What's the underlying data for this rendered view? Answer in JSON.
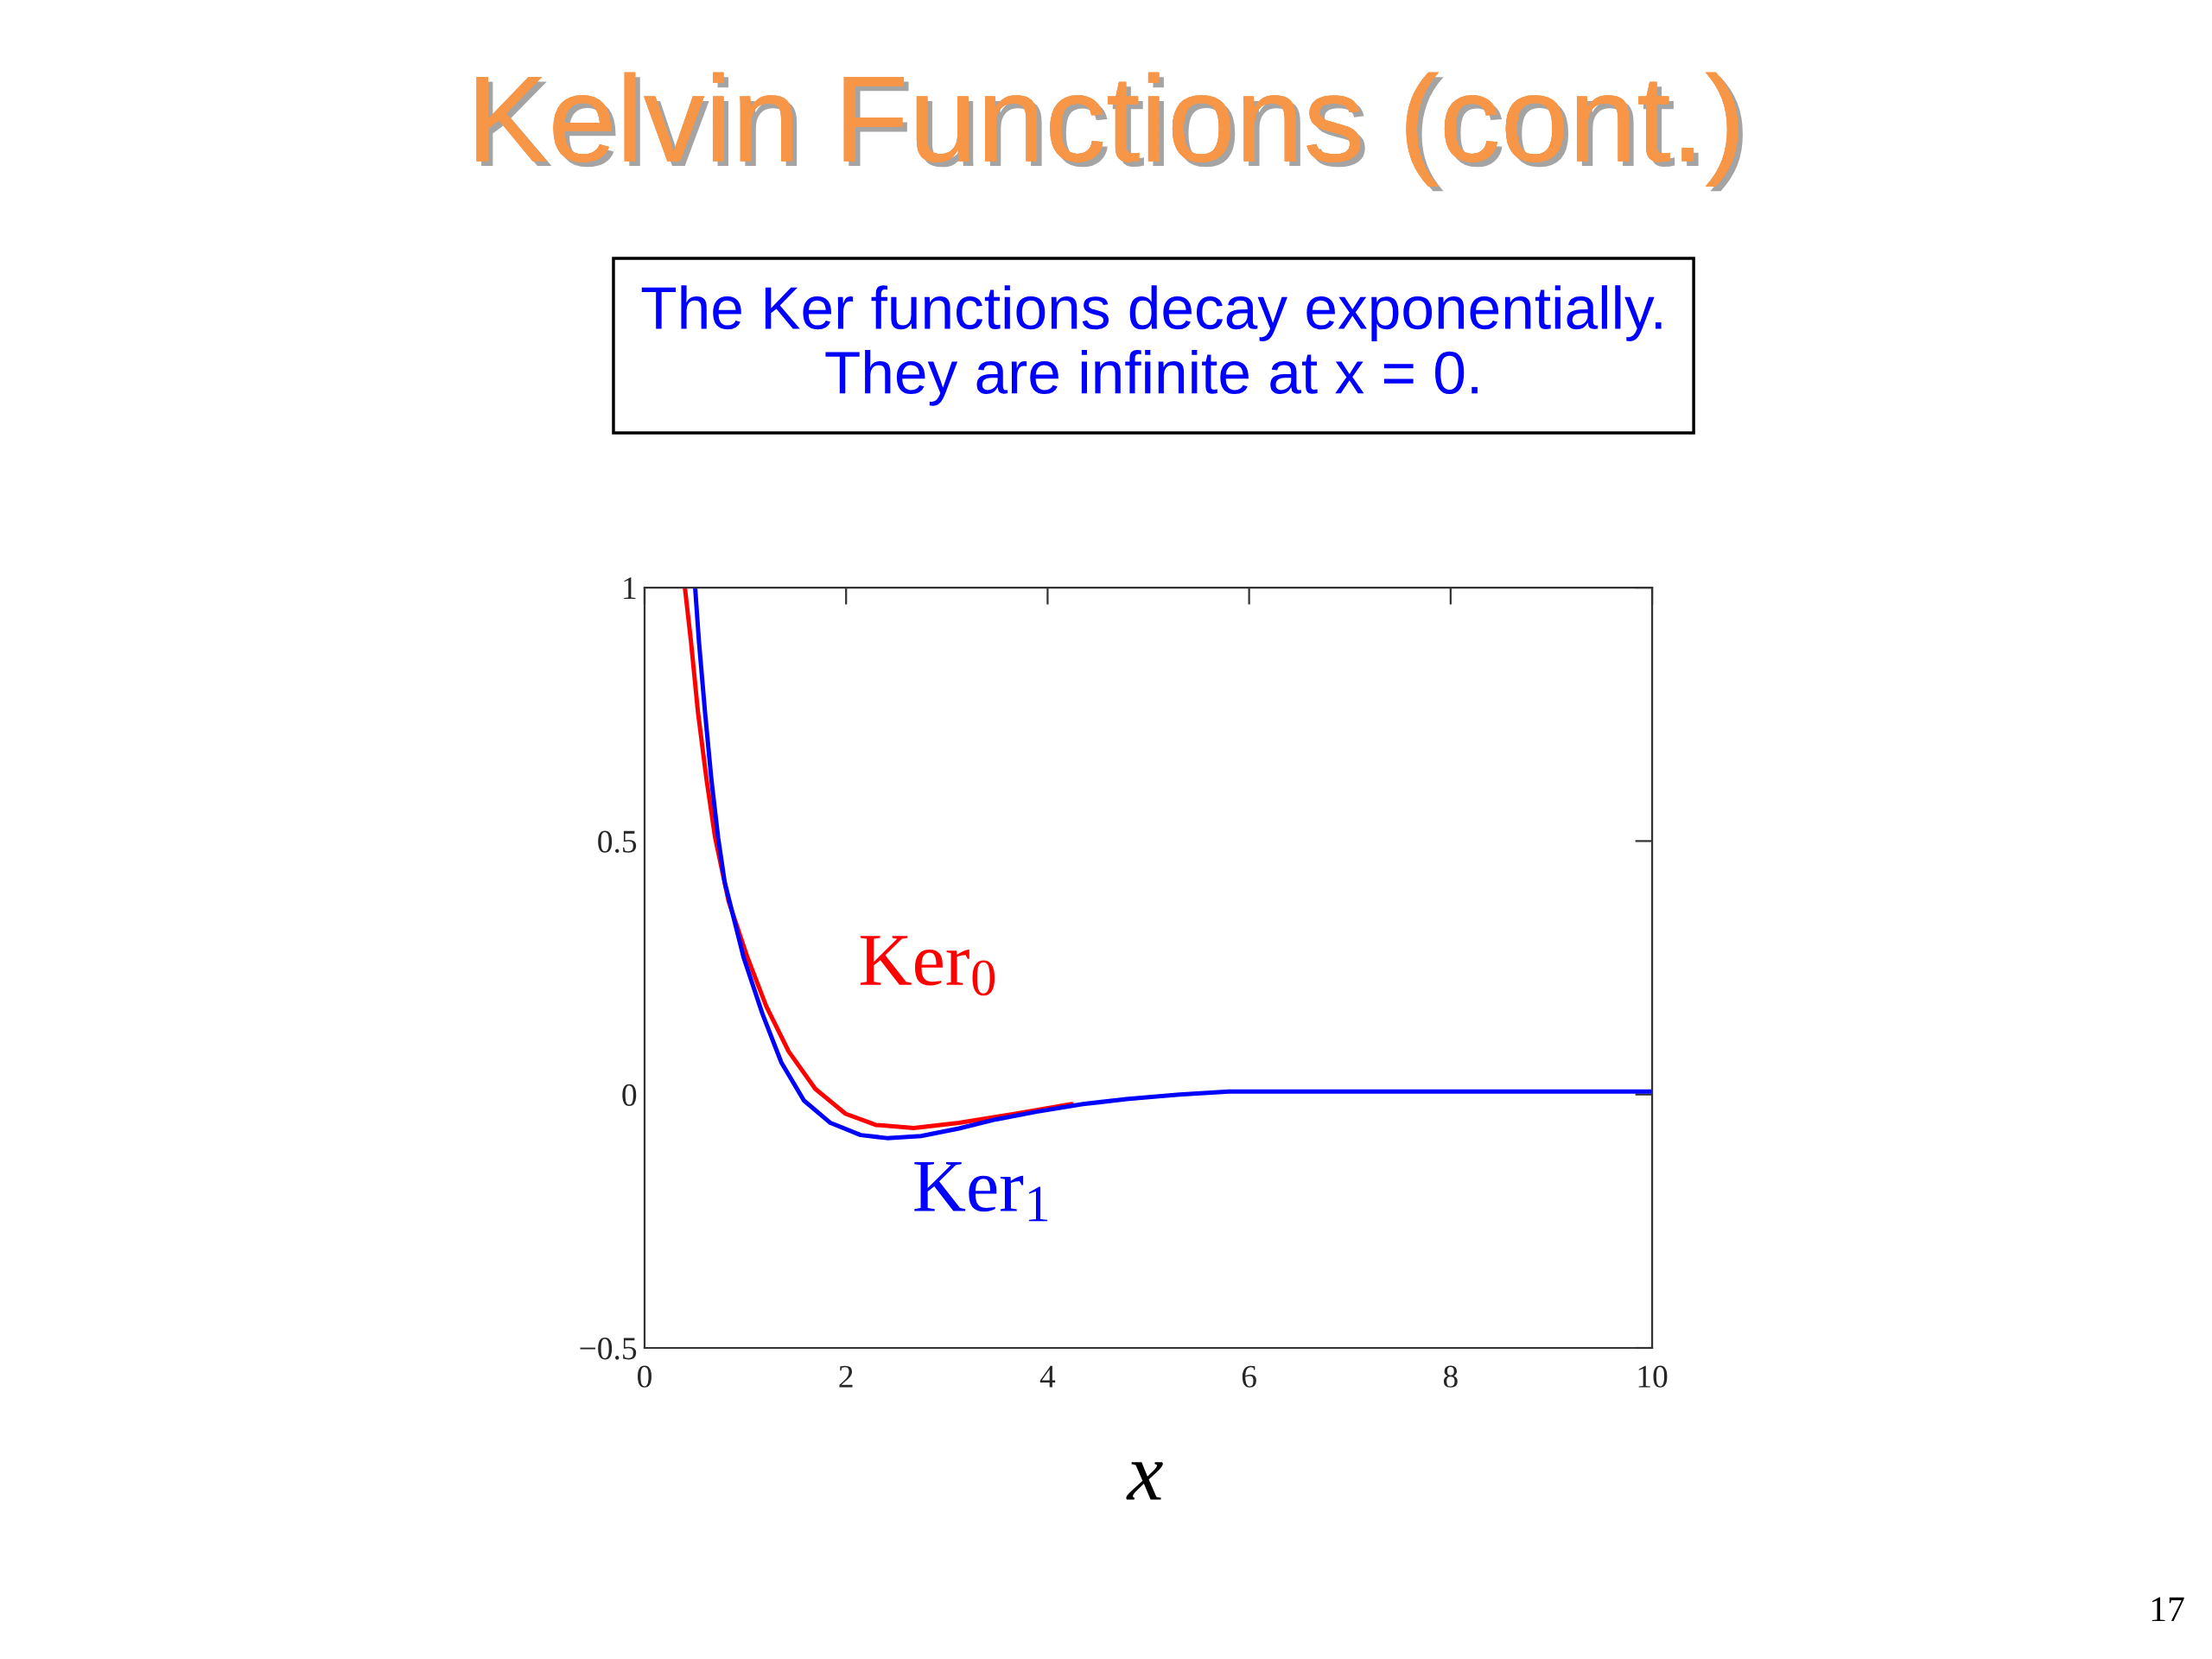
{
  "chart_data": {
    "type": "line",
    "title": "Kelvin Functions (cont.)",
    "xlabel": "x",
    "annotations": [
      "The Ker functions decay exponentially.\nThey are infinite at x = 0.",
      "17"
    ],
    "series": [
      {
        "name": "Ker$_{0}$",
        "color": "#ff0000",
        "x": [
          0.4,
          0.46,
          0.53,
          0.616,
          0.7,
          0.833,
          1.02,
          1.208,
          1.43,
          1.695,
          1.995,
          2.295,
          2.67,
          3.12,
          3.68,
          4.24
        ],
        "values": [
          1.0,
          0.895,
          0.754,
          0.62,
          0.507,
          0.382,
          0.271,
          0.174,
          0.085,
          0.011,
          -0.038,
          -0.06,
          -0.066,
          -0.056,
          -0.038,
          -0.019
        ]
      },
      {
        "name": "Ker$_{1}$",
        "color": "#0000ff",
        "x": [
          0.502,
          0.539,
          0.6,
          0.664,
          0.73,
          0.795,
          0.982,
          1.17,
          1.358,
          1.582,
          1.845,
          2.145,
          2.407,
          2.744,
          3.12,
          3.49,
          3.89,
          4.35,
          4.78,
          5.31,
          5.8,
          10
        ],
        "values": [
          1.0,
          0.895,
          0.754,
          0.62,
          0.507,
          0.419,
          0.271,
          0.159,
          0.063,
          -0.012,
          -0.056,
          -0.08,
          -0.086,
          -0.082,
          -0.067,
          -0.049,
          -0.034,
          -0.019,
          -0.009,
          0.0,
          0.006,
          0.006
        ]
      }
    ],
    "xlim": [
      0,
      10
    ],
    "ylim": [
      -0.5,
      1
    ],
    "xticks": [
      0,
      2,
      4,
      6,
      8,
      10
    ],
    "yticks": [
      {
        "value": -0.5,
        "label": "−0.5"
      },
      0,
      0.5,
      1
    ],
    "grid": false,
    "marker": "none",
    "line_style": "solid"
  }
}
